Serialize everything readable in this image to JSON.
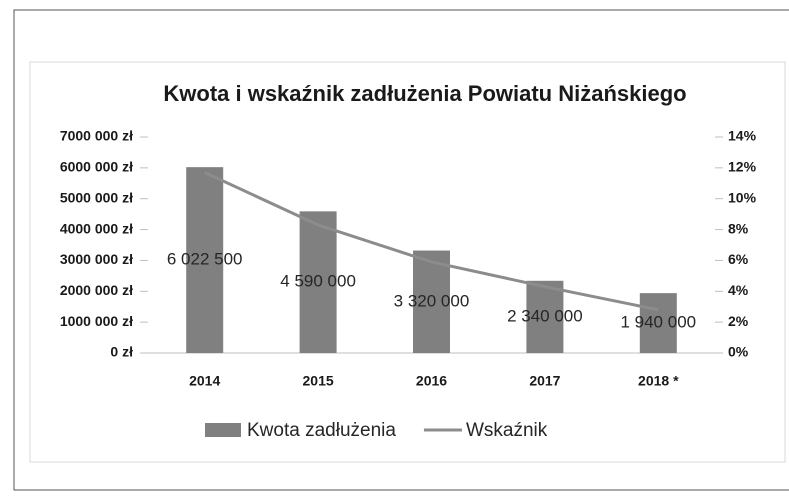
{
  "chart_data": {
    "type": "bar",
    "title": "Kwota i wskaźnik zadłużenia Powiatu Niżańskiego",
    "categories": [
      "2014",
      "2015",
      "2016",
      "2017",
      "2018 *"
    ],
    "series": [
      {
        "name": "Kwota zadłużenia",
        "type": "bar",
        "color": "#808080",
        "values": [
          6022500,
          4590000,
          3320000,
          2340000,
          1940000
        ],
        "value_labels": [
          "6 022 500",
          "4 590 000",
          "3 320 000",
          "2 340 000",
          "1 940 000"
        ]
      },
      {
        "name": "Wskaźnik",
        "type": "line",
        "color": "#8c8c8c",
        "axis": "y2",
        "values": [
          11.7,
          8.3,
          5.9,
          4.3,
          2.8
        ]
      }
    ],
    "ylim": [
      0,
      7000000
    ],
    "yticks": [
      {
        "value": 0,
        "label": "0 zł"
      },
      {
        "value": 1000000,
        "label": "1000 000 zł"
      },
      {
        "value": 2000000,
        "label": "2000 000 zł"
      },
      {
        "value": 3000000,
        "label": "3000 000 zł"
      },
      {
        "value": 4000000,
        "label": "4000 000 zł"
      },
      {
        "value": 5000000,
        "label": "5000 000 zł"
      },
      {
        "value": 6000000,
        "label": "6000 000 zł"
      },
      {
        "value": 7000000,
        "label": "7000 000 zł"
      }
    ],
    "y2lim": [
      0,
      14
    ],
    "y2ticks": [
      {
        "value": 0,
        "label": "0%"
      },
      {
        "value": 2,
        "label": "2%"
      },
      {
        "value": 4,
        "label": "4%"
      },
      {
        "value": 6,
        "label": "6%"
      },
      {
        "value": 8,
        "label": "8%"
      },
      {
        "value": 10,
        "label": "10%"
      },
      {
        "value": 12,
        "label": "12%"
      },
      {
        "value": 14,
        "label": "14%"
      }
    ],
    "grid": false,
    "legend": "bottom"
  }
}
